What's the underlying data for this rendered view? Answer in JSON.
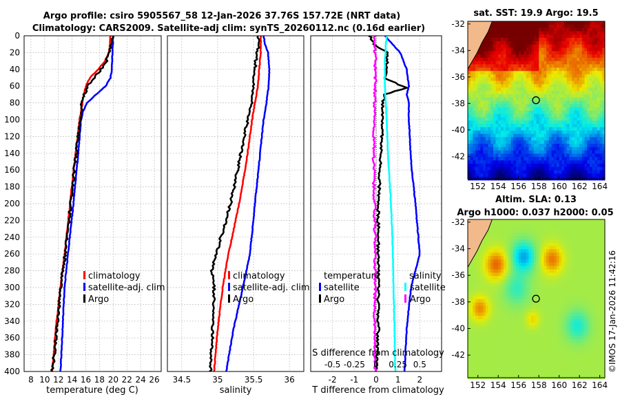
{
  "title": {
    "line1": "Argo profile: csiro 5905567_58 12-Jan-2026 37.76S 157.72E (NRT data)",
    "line2": "Climatology: CARS2009. Satellite-adj clim: synTS_20260112.nc (0.16d earlier)"
  },
  "colors": {
    "climatology": "#ff0000",
    "satellite": "#0000ff",
    "argo": "#000000",
    "sal_sat": "#00ffff",
    "sal_argo": "#ff00ff"
  },
  "chart_data": [
    {
      "type": "line",
      "panel": "temperature",
      "xlabel": "temperature (deg C)",
      "ylabel": "",
      "xlim": [
        7,
        27
      ],
      "ylim": [
        400,
        0
      ],
      "xticks": [
        "8",
        "10",
        "12",
        "14",
        "16",
        "18",
        "20",
        "22",
        "24",
        "26"
      ],
      "xtick_values": [
        8,
        10,
        12,
        14,
        16,
        18,
        20,
        22,
        24,
        26
      ],
      "yticks": [
        "0",
        "20",
        "40",
        "60",
        "80",
        "100",
        "120",
        "140",
        "160",
        "180",
        "200",
        "220",
        "240",
        "260",
        "280",
        "300",
        "320",
        "340",
        "360",
        "380",
        "400"
      ],
      "ytick_values": [
        0,
        20,
        40,
        60,
        80,
        100,
        120,
        140,
        160,
        180,
        200,
        220,
        240,
        260,
        280,
        300,
        320,
        340,
        360,
        380,
        400
      ],
      "legend": [
        "climatology",
        "satellite-adj. clim",
        "Argo"
      ],
      "series": [
        {
          "name": "climatology",
          "color": "#ff0000",
          "depth": [
            0,
            20,
            30,
            40,
            50,
            60,
            70,
            80,
            100,
            140,
            200,
            260,
            300,
            350,
            400
          ],
          "values": [
            19.6,
            19.4,
            18.8,
            17.8,
            16.6,
            16.0,
            15.7,
            15.5,
            15.1,
            14.5,
            13.7,
            12.9,
            12.3,
            11.6,
            11.1
          ]
        },
        {
          "name": "satellite-adj. clim",
          "color": "#0000ff",
          "depth": [
            0,
            20,
            40,
            50,
            60,
            70,
            80,
            90,
            100,
            140,
            200,
            260,
            300,
            350,
            400
          ],
          "values": [
            20.0,
            19.9,
            19.8,
            19.6,
            18.9,
            17.5,
            16.2,
            15.6,
            15.3,
            14.9,
            14.2,
            13.4,
            12.9,
            12.6,
            12.3
          ]
        },
        {
          "name": "Argo",
          "color": "#000000",
          "depth": [
            0,
            10,
            20,
            30,
            40,
            50,
            60,
            70,
            80,
            100,
            140,
            200,
            260,
            300,
            350,
            400
          ],
          "values": [
            19.9,
            19.8,
            19.4,
            19.0,
            18.2,
            17.3,
            16.3,
            15.8,
            15.4,
            15.2,
            14.6,
            13.8,
            13.0,
            12.3,
            11.8,
            11.1
          ]
        }
      ]
    },
    {
      "type": "line",
      "panel": "salinity",
      "xlabel": "salinity",
      "xlim": [
        34.3,
        36.2
      ],
      "ylim": [
        400,
        0
      ],
      "xticks": [
        "34.5",
        "35",
        "35.5",
        "36"
      ],
      "xtick_values": [
        34.5,
        35,
        35.5,
        36
      ],
      "legend": [
        "climatology",
        "satellite-adj. clim",
        "Argo"
      ],
      "series": [
        {
          "name": "climatology",
          "color": "#ff0000",
          "depth": [
            0,
            20,
            40,
            60,
            80,
            100,
            150,
            200,
            260,
            300,
            350,
            400
          ],
          "values": [
            35.6,
            35.6,
            35.58,
            35.56,
            35.52,
            35.48,
            35.4,
            35.3,
            35.15,
            35.07,
            35.0,
            34.95
          ]
        },
        {
          "name": "satellite-adj. clim",
          "color": "#0000ff",
          "depth": [
            0,
            10,
            20,
            40,
            60,
            80,
            100,
            150,
            200,
            260,
            300,
            350,
            400
          ],
          "values": [
            35.64,
            35.66,
            35.7,
            35.72,
            35.71,
            35.68,
            35.64,
            35.58,
            35.52,
            35.45,
            35.35,
            35.22,
            35.12
          ]
        },
        {
          "name": "Argo",
          "color": "#000000",
          "depth": [
            0,
            10,
            20,
            30,
            40,
            60,
            80,
            100,
            150,
            200,
            260,
            280,
            300,
            350,
            400
          ],
          "values": [
            35.57,
            35.58,
            35.55,
            35.53,
            35.52,
            35.5,
            35.47,
            35.42,
            35.3,
            35.18,
            34.98,
            34.92,
            34.95,
            34.93,
            34.9
          ]
        }
      ]
    },
    {
      "type": "line",
      "panel": "differences",
      "xlabel": "T difference from climatology",
      "xlim": [
        -3,
        3
      ],
      "ylim": [
        400,
        0
      ],
      "xticks": [
        "-2",
        "-1",
        "0",
        "1",
        "2"
      ],
      "xtick_values": [
        -2,
        -1,
        0,
        1,
        2
      ],
      "top_axis_label": "S difference from climatology",
      "top_ticks": [
        "-0.5",
        "-0.25",
        "0",
        "0.25",
        "0.5"
      ],
      "top_tick_values": [
        -0.5,
        -0.25,
        0,
        0.25,
        0.5
      ],
      "legend_temperature": {
        "heading": "temperature",
        "items": [
          "satellite",
          "Argo"
        ]
      },
      "legend_salinity": {
        "heading": "salinity",
        "items": [
          "satellite",
          "Argo"
        ]
      },
      "series": [
        {
          "name": "temperature satellite",
          "color": "#0000ff",
          "axis": "T",
          "depth": [
            0,
            20,
            40,
            60,
            70,
            80,
            100,
            150,
            200,
            260,
            300,
            350,
            400
          ],
          "values": [
            0.4,
            1.1,
            1.4,
            1.5,
            1.4,
            1.5,
            1.5,
            1.6,
            1.8,
            2.0,
            1.6,
            1.4,
            1.3
          ]
        },
        {
          "name": "temperature Argo",
          "color": "#000000",
          "axis": "T",
          "depth": [
            0,
            10,
            20,
            40,
            50,
            58,
            62,
            70,
            80,
            100,
            150,
            200,
            260,
            300,
            350,
            400
          ],
          "values": [
            -0.3,
            -0.1,
            0.5,
            0.5,
            0.4,
            1.0,
            1.4,
            0.4,
            0.3,
            0.3,
            0.2,
            0.1,
            0.1,
            0.1,
            0.1,
            0.0
          ]
        },
        {
          "name": "salinity satellite",
          "color": "#00ffff",
          "axis": "S",
          "depth": [
            0,
            30,
            60,
            100,
            150,
            200,
            250,
            300,
            350,
            400
          ],
          "values": [
            0.12,
            0.1,
            0.1,
            0.12,
            0.14,
            0.17,
            0.19,
            0.2,
            0.21,
            0.22
          ]
        },
        {
          "name": "salinity Argo",
          "color": "#ff00ff",
          "axis": "S",
          "depth": [
            0,
            30,
            60,
            100,
            150,
            200,
            250,
            300,
            350,
            400
          ],
          "values": [
            -0.02,
            -0.01,
            -0.01,
            -0.02,
            -0.03,
            -0.02,
            -0.01,
            -0.01,
            -0.02,
            -0.01
          ]
        }
      ]
    },
    {
      "type": "heatmap",
      "panel": "sst_map",
      "title": "sat. SST: 19.9 Argo: 19.5",
      "xticks": [
        "152",
        "154",
        "156",
        "158",
        "160",
        "162",
        "164"
      ],
      "xtick_values": [
        152,
        154,
        156,
        158,
        160,
        162,
        164
      ],
      "yticks": [
        "-32",
        "-34",
        "-36",
        "-38",
        "-40",
        "-42"
      ],
      "ytick_values": [
        -32,
        -34,
        -36,
        -38,
        -40,
        -42
      ],
      "xlim": [
        151,
        164.5
      ],
      "ylim": [
        -43.7,
        -31.8
      ],
      "marker": {
        "lon": 157.72,
        "lat": -37.76
      }
    },
    {
      "type": "heatmap",
      "panel": "sla_map",
      "title": "Altim. SLA: 0.13",
      "subtitle": "Argo h1000: 0.037 h2000: 0.05",
      "xticks": [
        "152",
        "154",
        "156",
        "158",
        "160",
        "162",
        "164"
      ],
      "xtick_values": [
        152,
        154,
        156,
        158,
        160,
        162,
        164
      ],
      "yticks": [
        "-32",
        "-34",
        "-36",
        "-38",
        "-40",
        "-42"
      ],
      "ytick_values": [
        -32,
        -34,
        -36,
        -38,
        -40,
        -42
      ],
      "xlim": [
        151,
        164.5
      ],
      "ylim": [
        -43.7,
        -31.8
      ],
      "marker": {
        "lon": 157.72,
        "lat": -37.76
      }
    }
  ],
  "credit": "©IMOS 17-Jan-2026 11:42:16"
}
